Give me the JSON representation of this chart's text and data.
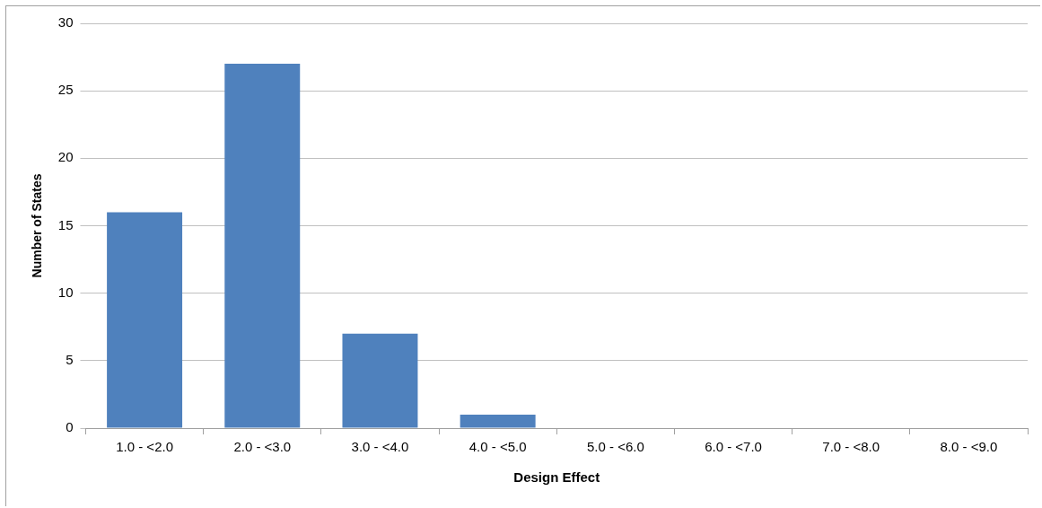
{
  "chart_data": {
    "type": "bar",
    "xlabel": "Design Effect",
    "ylabel": "Number of States",
    "categories": [
      "1.0 - <2.0",
      "2.0 - <3.0",
      "3.0 - <4.0",
      "4.0 - <5.0",
      "5.0 - <6.0",
      "6.0 - <7.0",
      "7.0 - <8.0",
      "8.0 - <9.0"
    ],
    "values": [
      16,
      27,
      7,
      1,
      0,
      0,
      0,
      0
    ],
    "color": "#4f81bd",
    "ylim": [
      0,
      30
    ],
    "yticks": [
      0,
      5,
      10,
      15,
      20,
      25,
      30
    ],
    "grid": "y"
  }
}
